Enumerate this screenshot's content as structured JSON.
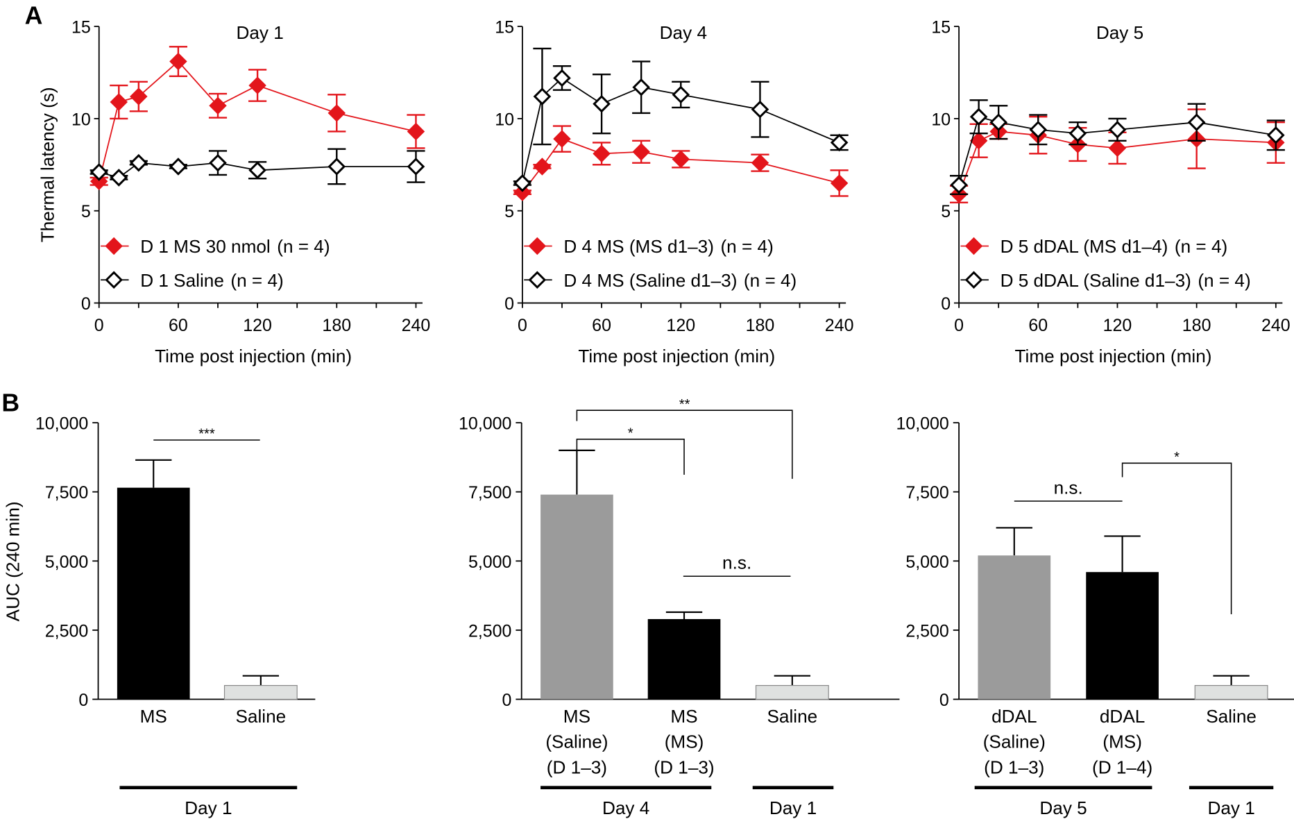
{
  "panel_labels": {
    "a": "A",
    "b": "B"
  },
  "colors": {
    "red": "#e3151b",
    "black": "#000000",
    "gray": "#9b9b9b",
    "light_gray": "#dfe1e0"
  },
  "chart_data": [
    {
      "type": "line",
      "panel": "A",
      "title": "Day 1",
      "xlabel": "Time post injection (min)",
      "ylabel": "Thermal latency (s)",
      "xlim": [
        0,
        240
      ],
      "ylim": [
        0,
        15
      ],
      "xticks": [
        0,
        60,
        120,
        180,
        240
      ],
      "yticks": [
        0,
        5,
        10,
        15
      ],
      "x": [
        0,
        15,
        30,
        60,
        90,
        120,
        180,
        240
      ],
      "series": [
        {
          "name": "D 1 MS 30 nmol",
          "n_label": "(n = 4)",
          "marker": "filled-diamond",
          "color": "#e3151b",
          "values": [
            6.6,
            10.9,
            11.2,
            13.1,
            10.7,
            11.8,
            10.3,
            9.3
          ],
          "errors": [
            0.2,
            0.9,
            0.8,
            0.8,
            0.65,
            0.85,
            1.0,
            0.9
          ]
        },
        {
          "name": "D 1 Saline",
          "n_label": "(n = 4)",
          "marker": "open-diamond",
          "color": "#000000",
          "values": [
            7.1,
            6.8,
            7.6,
            7.4,
            7.6,
            7.2,
            7.4,
            7.4
          ],
          "errors": [
            0.1,
            0.1,
            0.1,
            0.1,
            0.65,
            0.45,
            0.95,
            0.85
          ]
        }
      ],
      "legend": "bottom-left",
      "grid": false
    },
    {
      "type": "line",
      "panel": "A",
      "title": "Day 4",
      "xlabel": "Time post injection (min)",
      "ylabel": "",
      "xlim": [
        0,
        240
      ],
      "ylim": [
        0,
        15
      ],
      "xticks": [
        0,
        60,
        120,
        180,
        240
      ],
      "yticks": [
        0,
        5,
        10,
        15
      ],
      "x": [
        0,
        15,
        30,
        60,
        90,
        120,
        180,
        240
      ],
      "series": [
        {
          "name": "D 4 MS (MS d1–3)",
          "n_label": "(n = 4)",
          "marker": "filled-diamond",
          "color": "#e3151b",
          "values": [
            6.0,
            7.4,
            8.9,
            8.1,
            8.2,
            7.8,
            7.6,
            6.5
          ],
          "errors": [
            0.1,
            0.1,
            0.7,
            0.6,
            0.6,
            0.45,
            0.45,
            0.7
          ]
        },
        {
          "name": "D 4 MS (Saline d1–3)",
          "n_label": "(n = 4)",
          "marker": "open-diamond",
          "color": "#000000",
          "values": [
            6.5,
            11.2,
            12.2,
            10.8,
            11.7,
            11.3,
            10.5,
            8.7
          ],
          "errors": [
            0.1,
            2.6,
            0.65,
            1.6,
            1.4,
            0.7,
            1.5,
            0.4
          ]
        }
      ],
      "legend": "bottom-left",
      "grid": false
    },
    {
      "type": "line",
      "panel": "A",
      "title": "Day 5",
      "xlabel": "Time post injection (min)",
      "ylabel": "",
      "xlim": [
        0,
        240
      ],
      "ylim": [
        0,
        15
      ],
      "xticks": [
        0,
        60,
        120,
        180,
        240
      ],
      "yticks": [
        0,
        5,
        10,
        15
      ],
      "x": [
        0,
        15,
        30,
        60,
        90,
        120,
        180,
        240
      ],
      "series": [
        {
          "name": "D 5 dDAL (MS d1–4)",
          "n_label": "(n = 4)",
          "marker": "filled-diamond",
          "color": "#e3151b",
          "values": [
            5.9,
            8.8,
            9.3,
            9.1,
            8.6,
            8.4,
            8.9,
            8.7
          ],
          "errors": [
            0.45,
            0.9,
            0.4,
            1.0,
            0.9,
            0.85,
            1.6,
            1.1
          ]
        },
        {
          "name": "D 5 dDAL (Saline d1–3)",
          "n_label": "(n = 4)",
          "marker": "open-diamond",
          "color": "#000000",
          "values": [
            6.4,
            10.1,
            9.8,
            9.4,
            9.2,
            9.4,
            9.8,
            9.1
          ],
          "errors": [
            0.5,
            0.9,
            0.9,
            0.8,
            0.6,
            0.6,
            1.0,
            0.8
          ]
        }
      ],
      "legend": "bottom-left",
      "grid": false
    },
    {
      "type": "bar",
      "panel": "B",
      "ylabel": "AUC (240 min)",
      "ylim": [
        0,
        10000
      ],
      "yticks": [
        0,
        2500,
        5000,
        7500,
        10000
      ],
      "ytick_labels": [
        "0",
        "2,500",
        "5,000",
        "7,500",
        "10,000"
      ],
      "categories": [
        [
          "MS"
        ],
        [
          "Saline"
        ]
      ],
      "values": [
        7650,
        500
      ],
      "errors": [
        1000,
        350
      ],
      "bar_colors": [
        "#000000",
        "#dfe1e0"
      ],
      "groups": [
        {
          "label": "Day 1",
          "bars": [
            0,
            1
          ]
        }
      ],
      "significance": [
        {
          "from": 0,
          "to": 1,
          "label": "***"
        }
      ]
    },
    {
      "type": "bar",
      "panel": "B",
      "ylabel": "",
      "ylim": [
        0,
        10000
      ],
      "yticks": [
        0,
        2500,
        5000,
        7500,
        10000
      ],
      "ytick_labels": [
        "0",
        "2,500",
        "5,000",
        "7,500",
        "10,000"
      ],
      "categories": [
        [
          "MS",
          "(Saline)",
          "(D 1–3)"
        ],
        [
          "MS",
          "(MS)",
          "(D 1–3)"
        ],
        [
          "Saline"
        ]
      ],
      "values": [
        7400,
        2900,
        500
      ],
      "errors": [
        1600,
        250,
        350
      ],
      "bar_colors": [
        "#9b9b9b",
        "#000000",
        "#dfe1e0"
      ],
      "groups": [
        {
          "label": "Day 4",
          "bars": [
            0,
            1
          ]
        },
        {
          "label": "Day 1",
          "bars": [
            2
          ]
        }
      ],
      "significance": [
        {
          "from": 0,
          "to": 1,
          "label": "*"
        },
        {
          "from": 0,
          "to": 2,
          "label": "**"
        },
        {
          "from": 1,
          "to": 2,
          "label": "n.s."
        }
      ]
    },
    {
      "type": "bar",
      "panel": "B",
      "ylabel": "",
      "ylim": [
        0,
        10000
      ],
      "yticks": [
        0,
        2500,
        5000,
        7500,
        10000
      ],
      "ytick_labels": [
        "0",
        "2,500",
        "5,000",
        "7,500",
        "10,000"
      ],
      "categories": [
        [
          "dDAL",
          "(Saline)",
          "(D 1–3)"
        ],
        [
          "dDAL",
          "(MS)",
          "(D 1–4)"
        ],
        [
          "Saline"
        ]
      ],
      "values": [
        5200,
        4600,
        500
      ],
      "errors": [
        1000,
        1300,
        350
      ],
      "bar_colors": [
        "#9b9b9b",
        "#000000",
        "#dfe1e0"
      ],
      "groups": [
        {
          "label": "Day 5",
          "bars": [
            0,
            1
          ]
        },
        {
          "label": "Day 1",
          "bars": [
            2
          ]
        }
      ],
      "significance": [
        {
          "from": 0,
          "to": 1,
          "label": "n.s."
        },
        {
          "from": 1,
          "to": 2,
          "label": "*"
        }
      ]
    }
  ]
}
